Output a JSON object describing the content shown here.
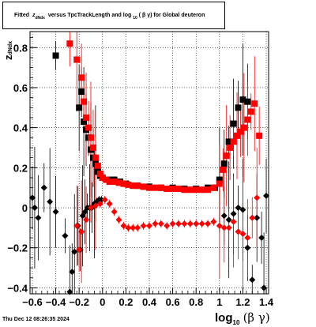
{
  "title": {
    "prefix": "Fitted",
    "zsym": "z",
    "zsub": "dNdx",
    "middle": "versus TpcTrackLength and log",
    "logsub": "10",
    "beta_gamma": "( β γ)",
    "suffix": "for Global deuteron"
  },
  "footer": {
    "timestamp": "Thu Dec 12 08:26:35 2024"
  },
  "axis_labels": {
    "y_main": "z",
    "y_sub": "dNdx",
    "x_main": "log",
    "x_sub": "10",
    "x_tail": "(β γ)"
  },
  "chart_data": {
    "type": "scatter",
    "xlim": [
      -0.62,
      1.42
    ],
    "ylim": [
      -0.43,
      0.88
    ],
    "grid": true,
    "xticks": [
      -0.6,
      -0.4,
      -0.2,
      0,
      0.2,
      0.4,
      0.6,
      0.8,
      1,
      1.2,
      1.4
    ],
    "xtick_labels": [
      "−0.6",
      "−0.4",
      "−0.2",
      "0",
      "0.2",
      "0.4",
      "0.6",
      "0.8",
      "1",
      "1.2",
      "1.4"
    ],
    "yticks": [
      -0.4,
      -0.2,
      0,
      0.2,
      0.4,
      0.6,
      0.8
    ],
    "ytick_labels": [
      "−0.4",
      "−0.2",
      "0",
      "0.2",
      "0.4",
      "0.6",
      "0.8"
    ],
    "colors": {
      "black": "#000000",
      "red": "#ff0000"
    },
    "series": [
      {
        "marker": "square",
        "color": "#000000",
        "x": [
          -0.4,
          -0.2,
          -0.18,
          -0.16,
          -0.14,
          -0.12,
          -0.1,
          -0.08,
          -0.06,
          -0.04,
          -0.02,
          0.0,
          0.05,
          0.1,
          0.15,
          0.2,
          0.3,
          0.4,
          0.5,
          0.6,
          0.7,
          0.8,
          0.9,
          0.96,
          1.0,
          1.04,
          1.08,
          1.12,
          1.16,
          1.2,
          1.24
        ],
        "y": [
          0.76,
          0.5,
          0.58,
          0.43,
          0.39,
          0.35,
          0.29,
          0.25,
          0.22,
          0.18,
          0.16,
          0.15,
          0.14,
          0.14,
          0.13,
          0.12,
          0.11,
          0.105,
          0.1,
          0.1,
          0.095,
          0.095,
          0.1,
          0.1,
          0.14,
          0.22,
          0.33,
          0.42,
          0.5,
          0.54,
          0.53
        ]
      },
      {
        "marker": "square",
        "color": "#ff0000",
        "x": [
          -0.28,
          -0.22,
          -0.18,
          -0.16,
          -0.14,
          -0.12,
          -0.1,
          -0.08,
          -0.06,
          -0.04,
          -0.02,
          0.0,
          0.03,
          0.06,
          0.1,
          0.14,
          0.18,
          0.22,
          0.26,
          0.3,
          0.35,
          0.4,
          0.45,
          0.5,
          0.55,
          0.6,
          0.65,
          0.7,
          0.75,
          0.8,
          0.85,
          0.9,
          0.95,
          1.0,
          1.03,
          1.06,
          1.09,
          1.12,
          1.15,
          1.18,
          1.21,
          1.24,
          1.27,
          1.3,
          1.34
        ],
        "y": [
          0.82,
          0.74,
          0.65,
          0.53,
          0.45,
          0.4,
          0.35,
          0.3,
          0.25,
          0.21,
          0.17,
          0.15,
          0.14,
          0.13,
          0.13,
          0.125,
          0.12,
          0.115,
          0.11,
          0.11,
          0.105,
          0.1,
          0.1,
          0.1,
          0.095,
          0.095,
          0.095,
          0.09,
          0.09,
          0.09,
          0.09,
          0.09,
          0.1,
          0.12,
          0.19,
          0.26,
          0.3,
          0.33,
          0.36,
          0.38,
          0.4,
          0.44,
          0.48,
          0.52,
          0.36
        ]
      },
      {
        "marker": "circle",
        "color": "#000000",
        "x": [
          -0.6,
          -0.58,
          -0.55,
          -0.5,
          -0.45,
          -0.4,
          -0.32,
          -0.28,
          -0.26,
          -0.24,
          -0.21,
          -0.19,
          -0.17,
          -0.15,
          -0.13,
          -0.11,
          -0.09,
          -0.07,
          -0.05,
          -0.03,
          -0.01,
          1.04,
          1.08,
          1.12,
          1.16,
          1.2,
          1.24,
          1.28,
          1.32,
          1.36,
          1.38,
          1.4
        ],
        "y": [
          0.05,
          0.0,
          -0.05,
          0.1,
          0.03,
          -0.02,
          -0.14,
          -0.42,
          -0.32,
          -0.22,
          -0.09,
          -0.21,
          -0.04,
          -0.02,
          0.0,
          0.0,
          0.0,
          0.02,
          0.03,
          0.04,
          0.04,
          -0.04,
          -0.06,
          -0.03,
          0.0,
          -0.01,
          -0.2,
          -0.36,
          -0.05,
          -0.15,
          -0.4,
          0.06
        ]
      },
      {
        "marker": "circle",
        "color": "#ff0000",
        "x": [
          -0.22,
          -0.2,
          -0.18,
          -0.14,
          -0.1,
          -0.06,
          -0.02,
          0.02,
          0.06,
          0.1,
          0.14,
          0.18,
          0.22,
          0.26,
          0.3,
          0.35,
          0.4,
          0.45,
          0.5,
          0.55,
          0.6,
          0.65,
          0.7,
          0.75,
          0.8,
          0.85,
          0.9,
          0.95,
          1.0,
          1.04,
          1.08,
          1.12,
          1.16,
          1.2,
          1.24,
          1.28,
          1.32
        ],
        "y": [
          -0.09,
          -0.21,
          -0.12,
          -0.06,
          0.0,
          0.01,
          0.02,
          0.04,
          0.02,
          -0.02,
          -0.06,
          -0.09,
          -0.1,
          -0.1,
          -0.1,
          -0.09,
          -0.09,
          -0.08,
          -0.08,
          -0.09,
          -0.08,
          -0.08,
          -0.08,
          -0.08,
          -0.08,
          -0.08,
          -0.08,
          -0.07,
          -0.09,
          -0.1,
          -0.1,
          -0.07,
          -0.12,
          -0.13,
          -0.15,
          -0.05,
          0.05
        ]
      }
    ]
  }
}
